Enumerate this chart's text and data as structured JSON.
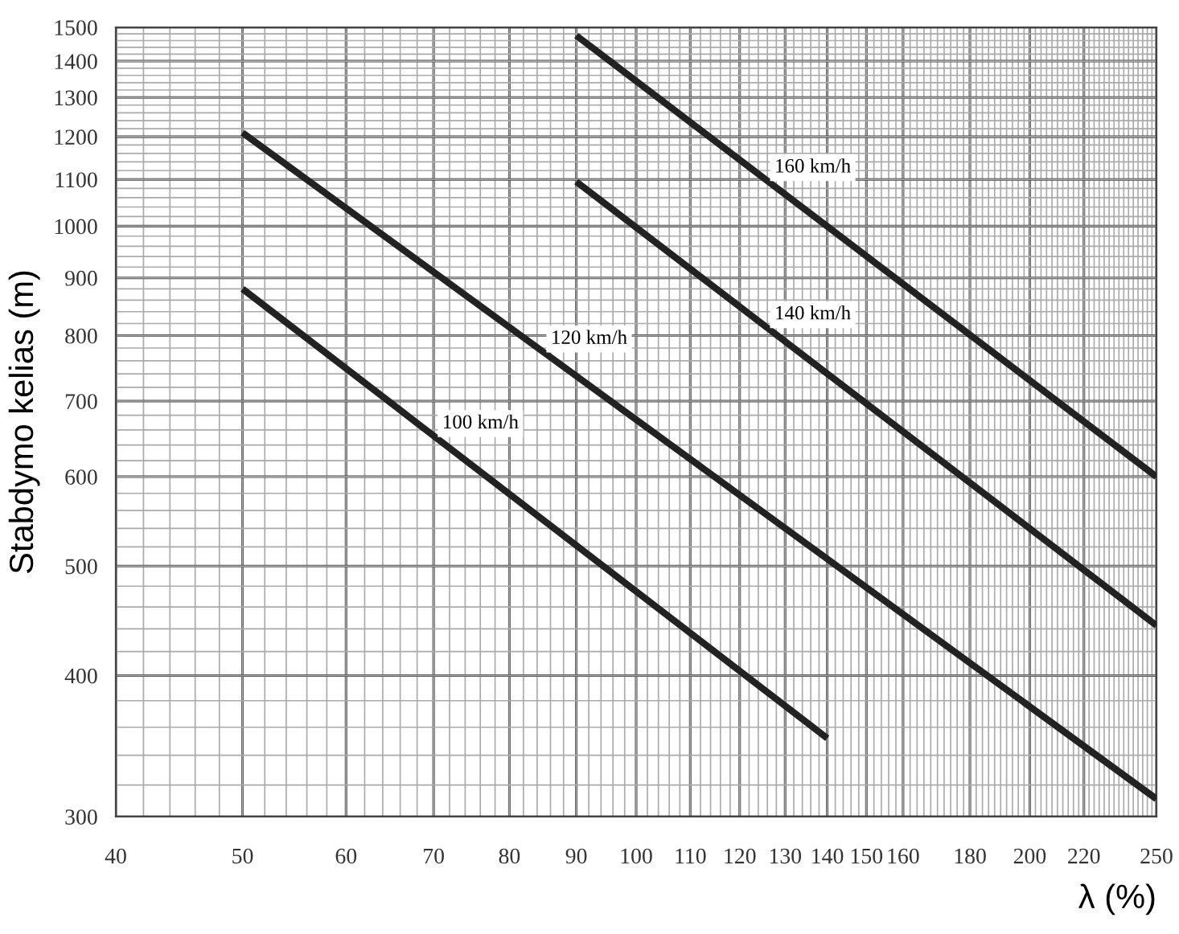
{
  "chart_data": {
    "type": "line",
    "xlabel": "λ (%)",
    "ylabel": "Stabdymo kelias (m)",
    "log": "xy",
    "grid": true,
    "legend": false,
    "marker": "none",
    "line_style": "solid",
    "xlim": [
      40,
      250
    ],
    "ylim": [
      300,
      1500
    ],
    "xticks": [
      40,
      50,
      60,
      70,
      80,
      90,
      100,
      110,
      120,
      130,
      140,
      150,
      160,
      180,
      200,
      220,
      250
    ],
    "yticks": [
      300,
      400,
      500,
      600,
      700,
      800,
      900,
      1000,
      1100,
      1200,
      1300,
      1400,
      1500
    ],
    "series": [
      {
        "name": "100 km/h",
        "color": "#222222",
        "x": [
          50,
          140
        ],
        "values": [
          880,
          352
        ]
      },
      {
        "name": "120 km/h",
        "color": "#222222",
        "x": [
          50,
          250
        ],
        "values": [
          1210,
          311
        ]
      },
      {
        "name": "140 km/h",
        "color": "#222222",
        "x": [
          90,
          250
        ],
        "values": [
          1095,
          443
        ]
      },
      {
        "name": "160 km/h",
        "color": "#222222",
        "x": [
          90,
          250
        ],
        "values": [
          1475,
          600
        ]
      }
    ]
  }
}
